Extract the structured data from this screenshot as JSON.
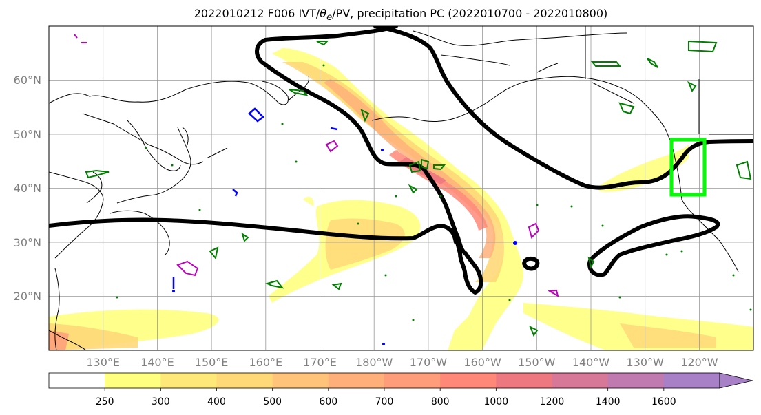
{
  "title": "2022010212 F006 IVT/θe/PV, precipitation PC (2022010700 - 2022010800)",
  "title_parts": {
    "prefix": "2022010212 F006 IVT/",
    "theta": "θ",
    "theta_sub": "e",
    "suffix": "/PV, precipitation PC (2022010700 - 2022010800)"
  },
  "map": {
    "projection": "PlateCarree",
    "lon_range": [
      120,
      250
    ],
    "lat_range": [
      10,
      70
    ],
    "lat_ticks": [
      "60°N",
      "50°N",
      "40°N",
      "30°N",
      "20°N"
    ],
    "lon_ticks": [
      "130°E",
      "140°E",
      "150°E",
      "160°E",
      "170°E",
      "180°W",
      "170°W",
      "160°W",
      "150°W",
      "140°W",
      "130°W",
      "120°W"
    ],
    "gridlines": true,
    "colors": {
      "theta_e_contour": "#000000",
      "pv_positive": "#008000",
      "pv_negative": "#0000ff",
      "pv_other": "#c000c0",
      "highlight_box": "#00ff00"
    }
  },
  "colorbar": {
    "levels": [
      "250",
      "300",
      "400",
      "500",
      "600",
      "700",
      "800",
      "1000",
      "1200",
      "1400",
      "1600"
    ],
    "colors": [
      "#ffffff",
      "#ffff80",
      "#ffe87a",
      "#ffd878",
      "#ffc47a",
      "#ffb07a",
      "#ff9c7a",
      "#ff8878",
      "#ee7880",
      "#d87898",
      "#c07ab0",
      "#a880c8"
    ],
    "extend": "max"
  }
}
